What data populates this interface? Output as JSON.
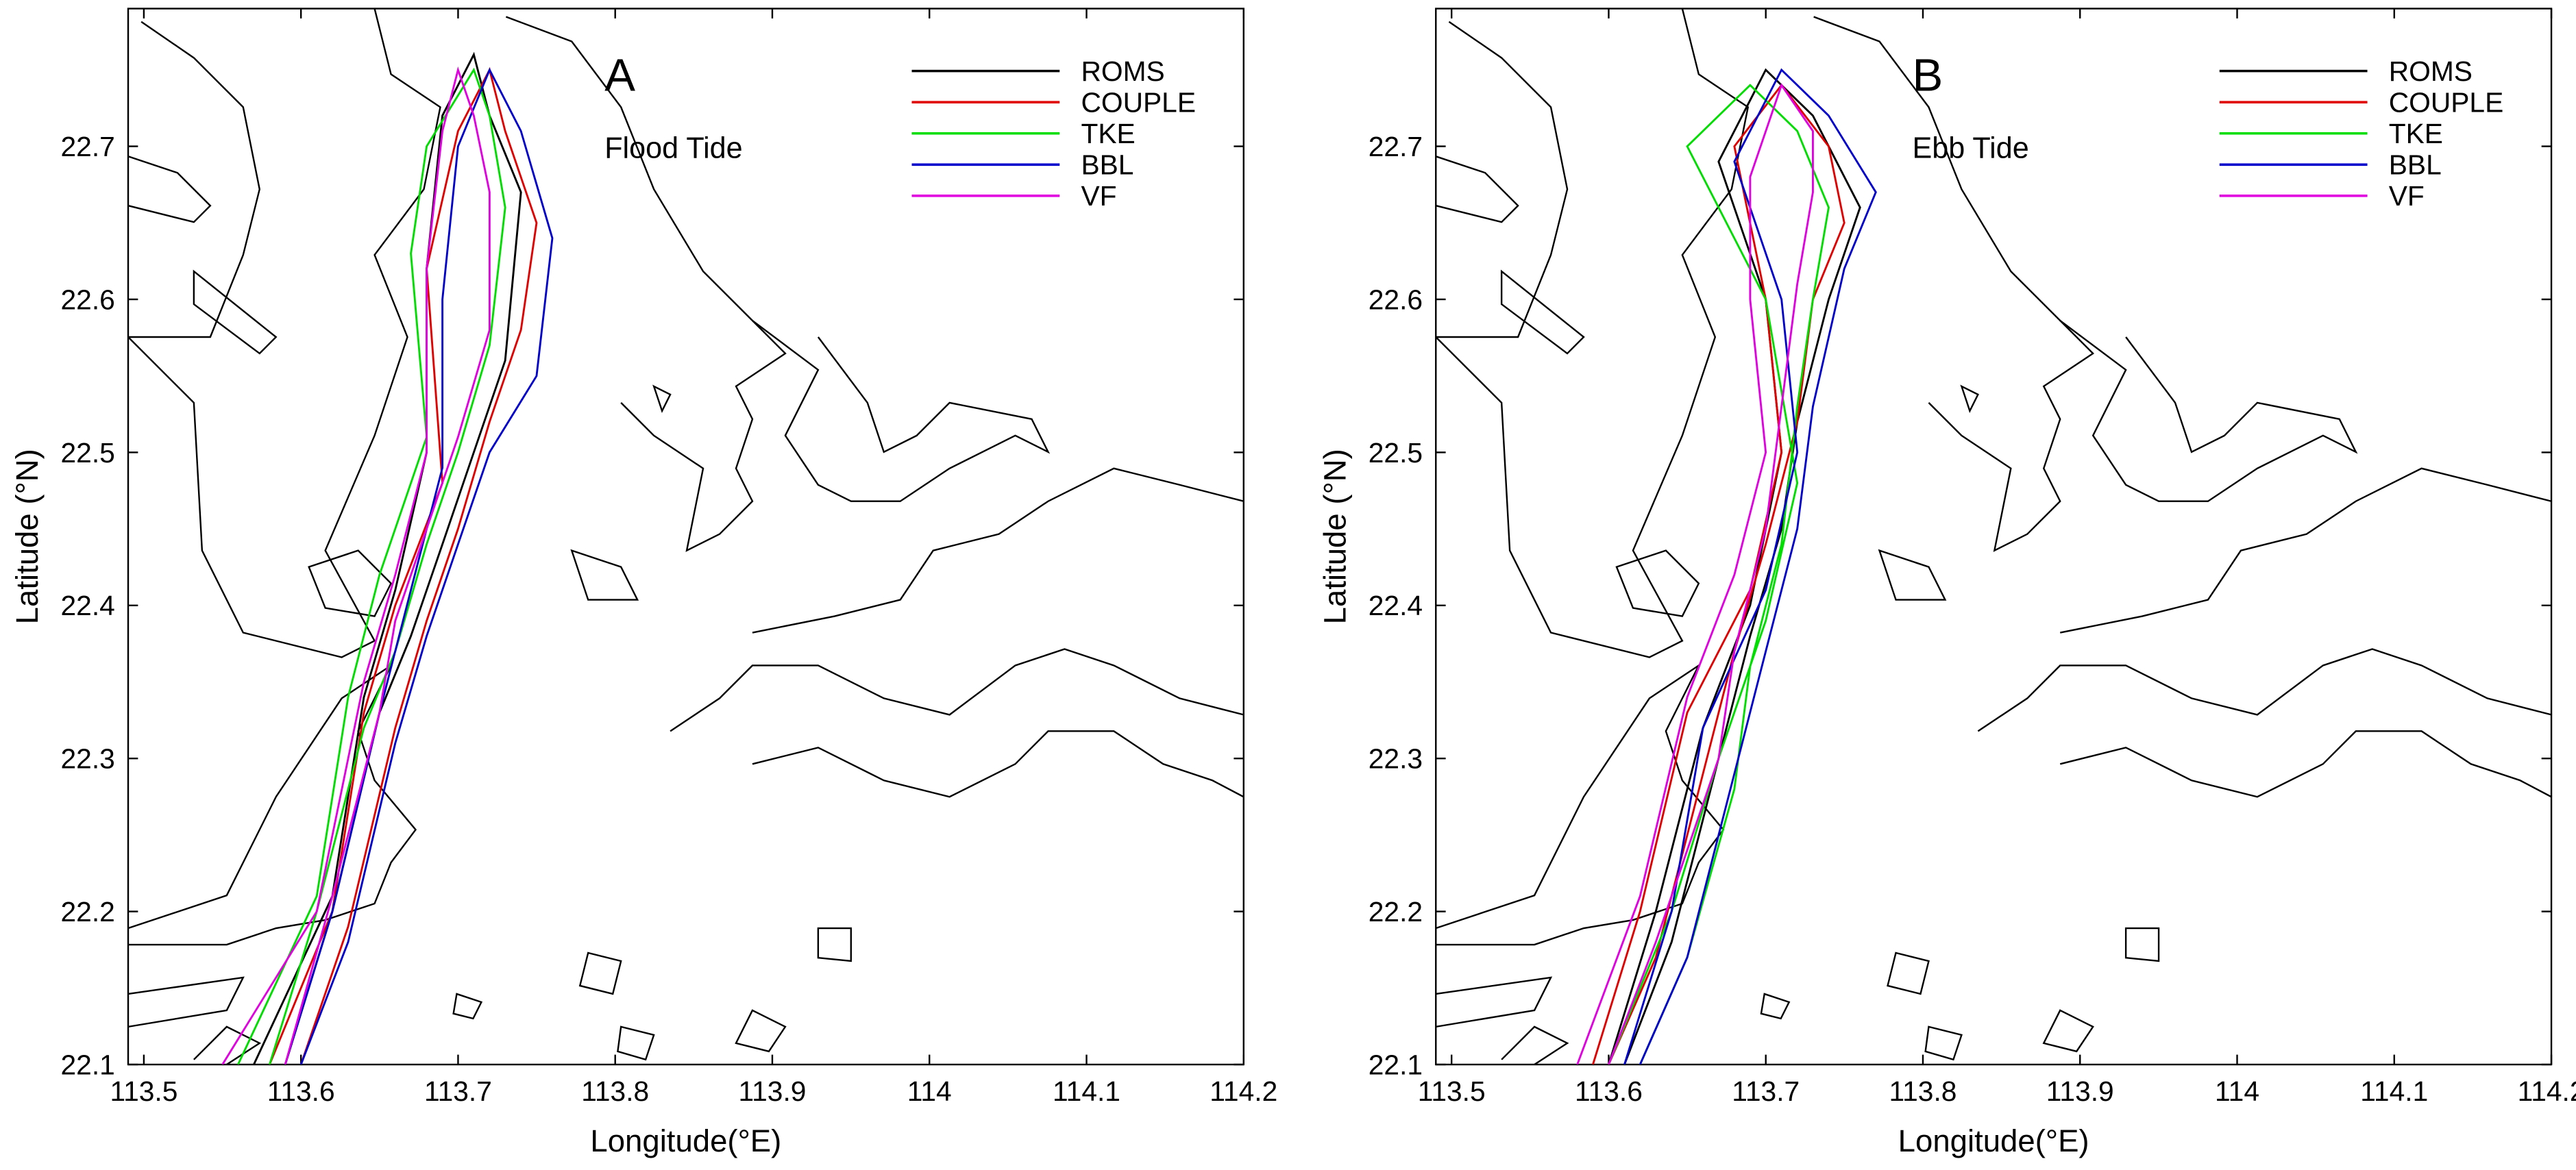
{
  "chart_data": [
    {
      "type": "line",
      "panel_label": "A",
      "annotation": "Flood Tide",
      "x_label": "Longitude(°E)",
      "y_label": "Latitude (°N)",
      "xlim": [
        113.49,
        114.2
      ],
      "ylim": [
        22.1,
        22.79
      ],
      "xticks": [
        113.5,
        113.6,
        113.7,
        113.8,
        113.9,
        114,
        114.1,
        114.2
      ],
      "yticks": [
        22.1,
        22.2,
        22.3,
        22.4,
        22.5,
        22.6,
        22.7
      ],
      "legend": "upper right",
      "series": [
        {
          "name": "ROMS",
          "color": "#000000",
          "x": [
            113.57,
            113.62,
            113.64,
            113.66,
            113.68,
            113.68,
            113.69,
            113.71,
            113.72,
            113.74,
            113.73,
            113.71,
            113.69,
            113.67,
            113.65,
            113.62,
            113.59
          ],
          "y": [
            22.1,
            22.21,
            22.34,
            22.41,
            22.5,
            22.62,
            22.72,
            22.76,
            22.72,
            22.67,
            22.56,
            22.5,
            22.44,
            22.38,
            22.33,
            22.2,
            22.1
          ]
        },
        {
          "name": "COUPLE",
          "color": "#e00000",
          "x": [
            113.58,
            113.62,
            113.64,
            113.66,
            113.69,
            113.68,
            113.7,
            113.72,
            113.73,
            113.75,
            113.74,
            113.72,
            113.7,
            113.68,
            113.66,
            113.63,
            113.6
          ],
          "y": [
            22.1,
            22.2,
            22.33,
            22.4,
            22.48,
            22.62,
            22.71,
            22.75,
            22.71,
            22.65,
            22.58,
            22.52,
            22.45,
            22.39,
            22.32,
            22.19,
            22.1
          ]
        },
        {
          "name": "TKE",
          "color": "#00dd00",
          "x": [
            113.56,
            113.61,
            113.63,
            113.65,
            113.68,
            113.67,
            113.68,
            113.71,
            113.72,
            113.73,
            113.72,
            113.7,
            113.68,
            113.66,
            113.64,
            113.61,
            113.58
          ],
          "y": [
            22.1,
            22.21,
            22.34,
            22.42,
            22.51,
            22.63,
            22.7,
            22.75,
            22.72,
            22.66,
            22.57,
            22.5,
            22.44,
            22.37,
            22.32,
            22.2,
            22.1
          ]
        },
        {
          "name": "BBL",
          "color": "#0000cc",
          "x": [
            113.59,
            113.62,
            113.65,
            113.67,
            113.69,
            113.69,
            113.7,
            113.72,
            113.74,
            113.76,
            113.75,
            113.72,
            113.7,
            113.68,
            113.66,
            113.63,
            113.6
          ],
          "y": [
            22.1,
            22.2,
            22.33,
            22.41,
            22.49,
            22.6,
            22.7,
            22.75,
            22.71,
            22.64,
            22.55,
            22.5,
            22.44,
            22.38,
            22.31,
            22.18,
            22.1
          ]
        },
        {
          "name": "VF",
          "color": "#e000e0",
          "x": [
            113.55,
            113.61,
            113.64,
            113.66,
            113.68,
            113.68,
            113.69,
            113.7,
            113.71,
            113.72,
            113.72,
            113.7,
            113.68,
            113.66,
            113.65,
            113.62,
            113.59
          ],
          "y": [
            22.1,
            22.2,
            22.35,
            22.42,
            22.5,
            22.62,
            22.71,
            22.75,
            22.72,
            22.67,
            22.58,
            22.51,
            22.45,
            22.39,
            22.33,
            22.21,
            22.1
          ]
        }
      ]
    },
    {
      "type": "line",
      "panel_label": "B",
      "annotation": "Ebb Tide",
      "x_label": "Longitude(°E)",
      "y_label": "Latitude (°N)",
      "xlim": [
        113.49,
        114.2
      ],
      "ylim": [
        22.1,
        22.79
      ],
      "xticks": [
        113.5,
        113.6,
        113.7,
        113.8,
        113.9,
        114,
        114.1,
        114.2
      ],
      "yticks": [
        22.1,
        22.2,
        22.3,
        22.4,
        22.5,
        22.6,
        22.7
      ],
      "legend": "upper right",
      "series": [
        {
          "name": "ROMS",
          "color": "#000000",
          "x": [
            113.6,
            113.63,
            113.66,
            113.69,
            113.71,
            113.7,
            113.67,
            113.7,
            113.73,
            113.76,
            113.74,
            113.72,
            113.71,
            113.69,
            113.67,
            113.64,
            113.61
          ],
          "y": [
            22.1,
            22.2,
            22.32,
            22.4,
            22.5,
            22.6,
            22.69,
            22.75,
            22.72,
            22.66,
            22.6,
            22.52,
            22.45,
            22.38,
            22.3,
            22.18,
            22.1
          ]
        },
        {
          "name": "COUPLE",
          "color": "#e00000",
          "x": [
            113.59,
            113.62,
            113.65,
            113.69,
            113.71,
            113.7,
            113.68,
            113.71,
            113.74,
            113.75,
            113.73,
            113.72,
            113.7,
            113.68,
            113.66,
            113.63,
            113.6
          ],
          "y": [
            22.1,
            22.2,
            22.33,
            22.41,
            22.5,
            22.6,
            22.7,
            22.74,
            22.7,
            22.65,
            22.6,
            22.52,
            22.44,
            22.37,
            22.29,
            22.17,
            22.1
          ]
        },
        {
          "name": "TKE",
          "color": "#00dd00",
          "x": [
            113.6,
            113.64,
            113.67,
            113.7,
            113.72,
            113.7,
            113.65,
            113.69,
            113.72,
            113.74,
            113.73,
            113.72,
            113.71,
            113.69,
            113.68,
            113.65,
            113.62
          ],
          "y": [
            22.1,
            22.2,
            22.3,
            22.39,
            22.48,
            22.6,
            22.7,
            22.74,
            22.71,
            22.66,
            22.6,
            22.53,
            22.44,
            22.36,
            22.28,
            22.17,
            22.1
          ]
        },
        {
          "name": "BBL",
          "color": "#0000cc",
          "x": [
            113.61,
            113.64,
            113.66,
            113.7,
            113.72,
            113.71,
            113.68,
            113.71,
            113.74,
            113.77,
            113.75,
            113.73,
            113.72,
            113.7,
            113.68,
            113.65,
            113.62
          ],
          "y": [
            22.1,
            22.2,
            22.32,
            22.41,
            22.5,
            22.6,
            22.69,
            22.75,
            22.72,
            22.67,
            22.62,
            22.53,
            22.45,
            22.37,
            22.29,
            22.17,
            22.1
          ]
        },
        {
          "name": "VF",
          "color": "#e000e0",
          "x": [
            113.58,
            113.62,
            113.65,
            113.68,
            113.7,
            113.69,
            113.69,
            113.71,
            113.73,
            113.73,
            113.72,
            113.71,
            113.7,
            113.68,
            113.67,
            113.63,
            113.6
          ],
          "y": [
            22.1,
            22.21,
            22.34,
            22.42,
            22.5,
            22.6,
            22.68,
            22.74,
            22.71,
            22.67,
            22.61,
            22.53,
            22.45,
            22.37,
            22.3,
            22.18,
            22.1
          ]
        }
      ]
    }
  ]
}
